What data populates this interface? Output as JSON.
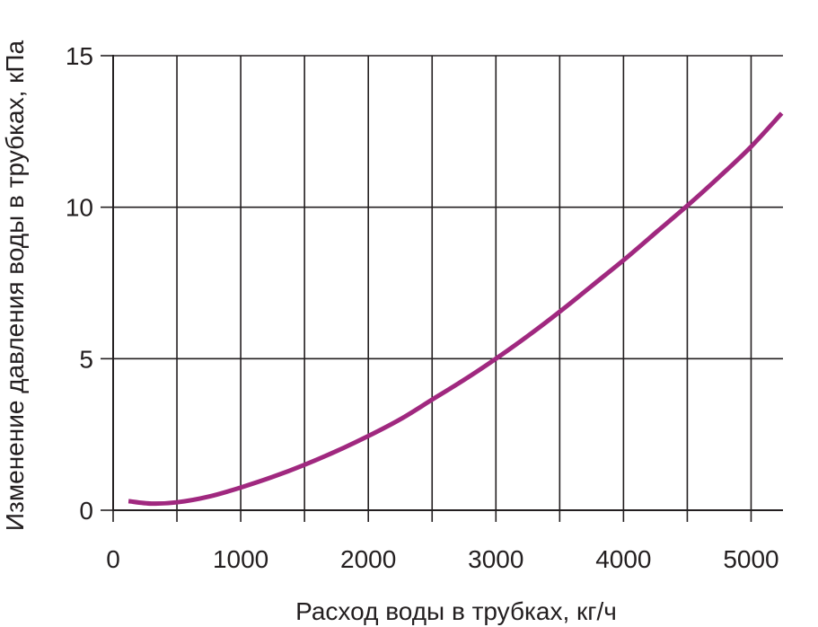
{
  "chart_data": {
    "type": "line",
    "title": "",
    "xlabel": "Расход воды в трубках, кг/ч",
    "ylabel": "Изменение давления воды в трубках, кПа",
    "xlim": [
      0,
      5250
    ],
    "ylim": [
      0,
      15
    ],
    "x_ticks": [
      0,
      1000,
      2000,
      3000,
      4000,
      5000
    ],
    "x_tick_labels": [
      "0",
      "1000",
      "2000",
      "3000",
      "4000",
      "5000"
    ],
    "y_ticks": [
      0,
      5,
      10,
      15
    ],
    "y_tick_labels": [
      "0",
      "5",
      "10",
      "15"
    ],
    "grid": true,
    "x_gridlines": [
      500,
      1000,
      1500,
      2000,
      2500,
      3000,
      3500,
      4000,
      4500,
      5000
    ],
    "y_gridlines": [
      5,
      10,
      15
    ],
    "series": [
      {
        "color": "#a0287f",
        "x": [
          120,
          300,
          500,
          750,
          1000,
          1250,
          1500,
          1750,
          2000,
          2250,
          2500,
          2750,
          3000,
          3250,
          3500,
          3750,
          4000,
          4250,
          4500,
          4750,
          5000,
          5240
        ],
        "y": [
          0.3,
          0.22,
          0.26,
          0.45,
          0.75,
          1.1,
          1.5,
          1.95,
          2.45,
          3.0,
          3.65,
          4.3,
          5.0,
          5.75,
          6.55,
          7.4,
          8.25,
          9.15,
          10.05,
          11.0,
          12.0,
          13.1
        ]
      }
    ]
  }
}
